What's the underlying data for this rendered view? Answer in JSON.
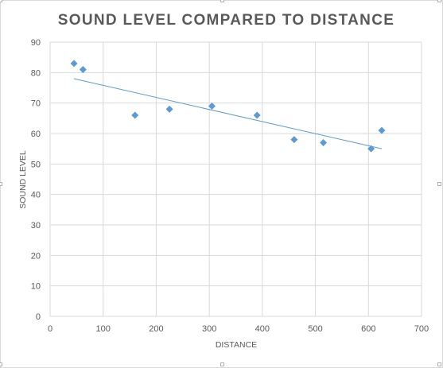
{
  "chart_data": {
    "type": "scatter",
    "title": "SOUND LEVEL COMPARED TO DISTANCE",
    "xlabel": "DISTANCE",
    "ylabel": "SOUND LEVEL",
    "xlim": [
      0,
      700
    ],
    "ylim": [
      0,
      90
    ],
    "xticks": [
      0,
      100,
      200,
      300,
      400,
      500,
      600,
      700
    ],
    "yticks": [
      0,
      10,
      20,
      30,
      40,
      50,
      60,
      70,
      80,
      90
    ],
    "grid": true,
    "legend": "none",
    "series": [
      {
        "marker": "diamond",
        "color": "#5b9bd5",
        "points": [
          {
            "x": 45,
            "y": 83
          },
          {
            "x": 62,
            "y": 81
          },
          {
            "x": 160,
            "y": 66
          },
          {
            "x": 225,
            "y": 68
          },
          {
            "x": 305,
            "y": 69
          },
          {
            "x": 390,
            "y": 66
          },
          {
            "x": 460,
            "y": 58
          },
          {
            "x": 515,
            "y": 57
          },
          {
            "x": 605,
            "y": 55
          },
          {
            "x": 625,
            "y": 61
          }
        ]
      }
    ],
    "trendline": {
      "type": "linear",
      "color": "#5b9bd5",
      "from": {
        "x": 45,
        "y": 78
      },
      "to": {
        "x": 625,
        "y": 55
      }
    },
    "colors": {
      "gridline": "#d9d9d9",
      "text": "#595959",
      "marker": "#5b9bd5"
    }
  }
}
